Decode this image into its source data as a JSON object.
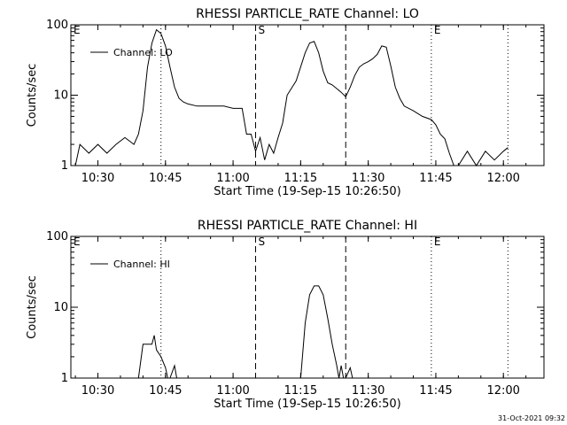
{
  "footer": {
    "timestamp": "31-Oct-2021 09:32"
  },
  "chart_data": [
    {
      "type": "line",
      "title": "RHESSI PARTICLE_RATE Channel: LO",
      "xlabel": "Start Time (19-Sep-15 10:26:50)",
      "ylabel": "Counts/sec",
      "y_scale": "log",
      "ylim": [
        1,
        100
      ],
      "xlim": [
        "10:24",
        "12:09"
      ],
      "y_ticks": [
        "1",
        "10",
        "100"
      ],
      "x_ticks": [
        "10:30",
        "10:45",
        "11:00",
        "11:15",
        "11:30",
        "11:45",
        "12:00"
      ],
      "legend": {
        "position": "top-left",
        "entries": [
          "Channel: LO"
        ]
      },
      "markers": [
        {
          "label": "E",
          "time": "10:24",
          "style": "none"
        },
        {
          "label": "",
          "time": "10:44",
          "style": "dotted"
        },
        {
          "label": "S",
          "time": "11:05",
          "style": "dashed"
        },
        {
          "label": "",
          "time": "11:25",
          "style": "dashed"
        },
        {
          "label": "E",
          "time": "11:44",
          "style": "dotted"
        },
        {
          "label": "",
          "time": "12:01",
          "style": "dotted"
        }
      ],
      "series": [
        {
          "name": "Channel: LO",
          "points": [
            [
              "10:25",
              1.0
            ],
            [
              "10:26",
              2.0
            ],
            [
              "10:28",
              1.5
            ],
            [
              "10:30",
              2.0
            ],
            [
              "10:32",
              1.5
            ],
            [
              "10:34",
              2.0
            ],
            [
              "10:36",
              2.5
            ],
            [
              "10:38",
              2.0
            ],
            [
              "10:39",
              2.8
            ],
            [
              "10:40",
              6
            ],
            [
              "10:41",
              25
            ],
            [
              "10:42",
              55
            ],
            [
              "10:43",
              85
            ],
            [
              "10:44",
              75
            ],
            [
              "10:45",
              50
            ],
            [
              "10:46",
              25
            ],
            [
              "10:47",
              13
            ],
            [
              "10:48",
              9
            ],
            [
              "10:49",
              8
            ],
            [
              "10:50",
              7.5
            ],
            [
              "10:52",
              7
            ],
            [
              "10:54",
              7
            ],
            [
              "10:56",
              7
            ],
            [
              "10:58",
              7
            ],
            [
              "11:00",
              6.5
            ],
            [
              "11:02",
              6.5
            ],
            [
              "11:03",
              2.8
            ],
            [
              "11:04",
              2.8
            ],
            [
              "11:05",
              1.6
            ],
            [
              "11:06",
              2.5
            ],
            [
              "11:07",
              1.2
            ],
            [
              "11:08",
              2.0
            ],
            [
              "11:09",
              1.5
            ],
            [
              "11:10",
              2.5
            ],
            [
              "11:11",
              4
            ],
            [
              "11:12",
              10
            ],
            [
              "11:14",
              16
            ],
            [
              "11:16",
              40
            ],
            [
              "11:17",
              55
            ],
            [
              "11:18",
              58
            ],
            [
              "11:19",
              40
            ],
            [
              "11:20",
              22
            ],
            [
              "11:21",
              15
            ],
            [
              "11:22",
              14
            ],
            [
              "11:24",
              11
            ],
            [
              "11:25",
              9.5
            ],
            [
              "11:26",
              13
            ],
            [
              "11:27",
              19
            ],
            [
              "11:28",
              25
            ],
            [
              "11:29",
              28
            ],
            [
              "11:30",
              30
            ],
            [
              "11:31",
              33
            ],
            [
              "11:32",
              38
            ],
            [
              "11:33",
              50
            ],
            [
              "11:34",
              48
            ],
            [
              "11:35",
              26
            ],
            [
              "11:36",
              13
            ],
            [
              "11:37",
              9
            ],
            [
              "11:38",
              7
            ],
            [
              "11:40",
              6
            ],
            [
              "11:42",
              5
            ],
            [
              "11:44",
              4.5
            ],
            [
              "11:45",
              3.8
            ],
            [
              "11:46",
              2.8
            ],
            [
              "11:47",
              2.4
            ],
            [
              "11:48",
              1.5
            ],
            [
              "11:49",
              1.0
            ],
            [
              "11:50",
              1.0
            ],
            [
              "11:52",
              1.6
            ],
            [
              "11:54",
              1.0
            ],
            [
              "11:56",
              1.6
            ],
            [
              "11:58",
              1.2
            ],
            [
              "12:00",
              1.6
            ],
            [
              "12:01",
              1.8
            ]
          ]
        }
      ]
    },
    {
      "type": "line",
      "title": "RHESSI PARTICLE_RATE Channel: HI",
      "xlabel": "Start Time (19-Sep-15 10:26:50)",
      "ylabel": "Counts/sec",
      "y_scale": "log",
      "ylim": [
        1,
        100
      ],
      "xlim": [
        "10:24",
        "12:09"
      ],
      "y_ticks": [
        "1",
        "10",
        "100"
      ],
      "x_ticks": [
        "10:30",
        "10:45",
        "11:00",
        "11:15",
        "11:30",
        "11:45",
        "12:00"
      ],
      "legend": {
        "position": "top-left",
        "entries": [
          "Channel: HI"
        ]
      },
      "markers": [
        {
          "label": "E",
          "time": "10:24",
          "style": "none"
        },
        {
          "label": "",
          "time": "10:44",
          "style": "dotted"
        },
        {
          "label": "S",
          "time": "11:05",
          "style": "dashed"
        },
        {
          "label": "",
          "time": "11:25",
          "style": "dashed"
        },
        {
          "label": "E",
          "time": "11:44",
          "style": "dotted"
        },
        {
          "label": "",
          "time": "12:01",
          "style": "dotted"
        }
      ],
      "series": [
        {
          "name": "Channel: HI",
          "points": [
            [
              "10:39",
              1.0
            ],
            [
              "10:40",
              3.0
            ],
            [
              "10:41",
              3.0
            ],
            [
              "10:42",
              3.0
            ],
            [
              "10:42.5",
              4.0
            ],
            [
              "10:43",
              2.5
            ],
            [
              "10:44",
              2.0
            ],
            [
              "10:45",
              1.4
            ],
            [
              "10:45.5",
              1.0
            ],
            [
              "10:46",
              1.0
            ],
            [
              "10:47",
              1.5
            ],
            [
              "10:47.5",
              1.0
            ],
            [
              "11:15",
              1.0
            ],
            [
              "11:16",
              6
            ],
            [
              "11:17",
              15
            ],
            [
              "11:18",
              20
            ],
            [
              "11:19",
              20
            ],
            [
              "11:20",
              15
            ],
            [
              "11:21",
              7
            ],
            [
              "11:22",
              3.0
            ],
            [
              "11:23",
              1.5
            ],
            [
              "11:23.5",
              1.0
            ],
            [
              "11:24",
              1.5
            ],
            [
              "11:24.5",
              1.0
            ],
            [
              "11:25",
              1.0
            ],
            [
              "11:26",
              1.4
            ],
            [
              "11:26.5",
              1.0
            ]
          ]
        }
      ]
    }
  ]
}
